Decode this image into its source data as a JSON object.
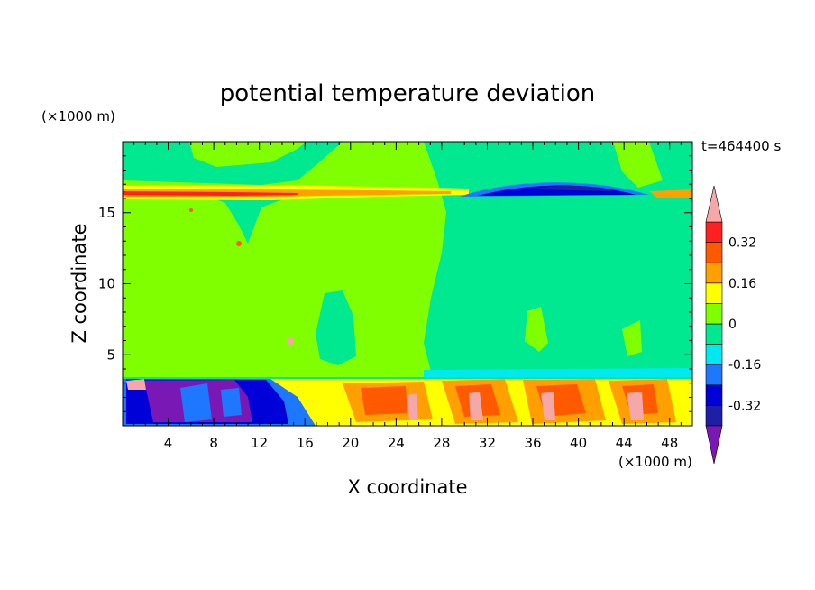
{
  "chart_data": {
    "type": "heatmap",
    "title": "potential temperature deviation",
    "xlabel": "X coordinate",
    "ylabel": "Z coordinate",
    "x_unit_label": "(×1000 m)",
    "y_unit_label": "(×1000 m)",
    "time_label": "t=464400 s",
    "xlim": [
      0,
      50
    ],
    "ylim": [
      0,
      20
    ],
    "x_ticks": [
      4,
      8,
      12,
      16,
      20,
      24,
      28,
      32,
      36,
      40,
      44,
      48
    ],
    "y_ticks": [
      5,
      10,
      15
    ],
    "colorbar": {
      "levels": [
        -0.4,
        -0.32,
        -0.24,
        -0.16,
        -0.08,
        0,
        0.08,
        0.16,
        0.24,
        0.32,
        0.4
      ],
      "tick_labels": [
        "0.32",
        "0.16",
        "0",
        "-0.16",
        "-0.32"
      ],
      "tick_values": [
        0.32,
        0.16,
        0,
        -0.16,
        -0.32
      ],
      "colors": [
        "#7a18b6",
        "#1e1ea6",
        "#0000d8",
        "#1e78ff",
        "#00e8f0",
        "#00e890",
        "#80ff00",
        "#ffff00",
        "#ffa000",
        "#ff5a00",
        "#ff2020",
        "#f5a8a8"
      ],
      "extend": "both"
    },
    "regions": [
      {
        "desc": "upper-left band",
        "value": 0.02,
        "x": [
          0,
          30
        ],
        "z": [
          16,
          20
        ]
      },
      {
        "desc": "mid-level left",
        "value": 0.02,
        "x": [
          0,
          22
        ],
        "z": [
          4,
          16
        ]
      },
      {
        "desc": "mid-level right",
        "value": -0.02,
        "x": [
          22,
          50
        ],
        "z": [
          4,
          16
        ]
      },
      {
        "desc": "tropopause warm band",
        "value": 0.2,
        "x": [
          0,
          29
        ],
        "z": [
          15.8,
          16.6
        ]
      },
      {
        "desc": "tropopause cold lens",
        "value": -0.36,
        "x": [
          29,
          46
        ],
        "z": [
          15.9,
          16.8
        ]
      },
      {
        "desc": "boundary layer cold pool",
        "value": -0.38,
        "x": [
          0,
          17
        ],
        "z": [
          0,
          3.4
        ]
      },
      {
        "desc": "boundary layer warm cells",
        "value": 0.3,
        "x": [
          18,
          50
        ],
        "z": [
          0,
          3.4
        ]
      }
    ]
  }
}
